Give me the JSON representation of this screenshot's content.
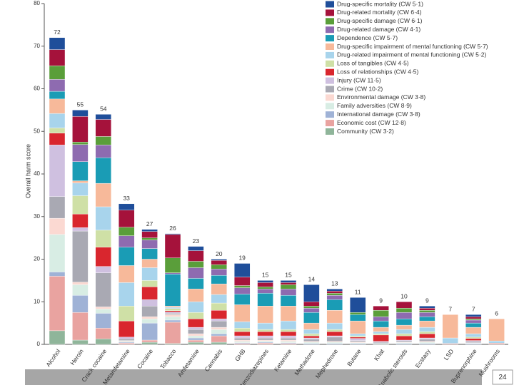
{
  "chart_data": {
    "type": "stacked_bar",
    "y_label": "Overall harm score",
    "ylim": [
      0,
      80
    ],
    "yticks": [
      0,
      10,
      20,
      30,
      40,
      50,
      60,
      70,
      80
    ],
    "categories": [
      "Alcohol",
      "Heroin",
      "Crack cocaine",
      "Metamfetamine",
      "Cocaine",
      "Tobacco",
      "Amfetamine",
      "Cannabis",
      "GHB",
      "Benzodiazepines",
      "Ketamine",
      "Methadone",
      "Mephedrone",
      "Butane",
      "Khat",
      "Anabolic steroids",
      "Ecstasy",
      "LSD",
      "Buprenorphine",
      "Mushrooms"
    ],
    "totals": [
      72,
      55,
      54,
      33,
      27,
      26,
      23,
      20,
      19,
      15,
      15,
      14,
      13,
      11,
      9,
      10,
      9,
      7,
      7,
      6
    ],
    "series": [
      {
        "name": "Drug-specific mortality (CW 5·1)",
        "color": "#1f4e9a",
        "values": [
          2.8,
          1.5,
          1.2,
          1.5,
          0.5,
          0.2,
          1.0,
          0.3,
          3.2,
          0.5,
          0.5,
          4.0,
          0.5,
          3.5,
          0.0,
          0.0,
          0.5,
          0,
          0.5,
          0
        ]
      },
      {
        "name": "Drug-related mortality (CW 6·4)",
        "color": "#a5123b",
        "values": [
          3.8,
          6.0,
          4.0,
          4.0,
          1.5,
          5.5,
          2.5,
          1.0,
          2.0,
          1.0,
          0.5,
          1.0,
          0.5,
          0.0,
          1.0,
          1.5,
          0.5,
          0,
          0.5,
          0
        ]
      },
      {
        "name": "Drug-specific damage (CW 6·1)",
        "color": "#5a9e3a",
        "values": [
          3.2,
          0.6,
          2.0,
          2.0,
          0.5,
          3.5,
          1.5,
          1.0,
          0.5,
          0.5,
          1.0,
          0.5,
          0.5,
          0.5,
          1.5,
          1.0,
          0.5,
          0,
          0.3,
          0
        ]
      },
      {
        "name": "Drug-related damage (CW 4·1)",
        "color": "#8e6bb0",
        "values": [
          2.8,
          4.0,
          3.0,
          2.7,
          2.0,
          0.3,
          2.5,
          1.5,
          1.5,
          1.0,
          1.5,
          1.0,
          1.0,
          0.0,
          1.0,
          1.5,
          1.0,
          0,
          0.7,
          0
        ]
      },
      {
        "name": "Dependence (CW 5·7)",
        "color": "#1a9cb5",
        "values": [
          1.8,
          4.5,
          6.0,
          4.3,
          2.5,
          7.5,
          2.5,
          2.0,
          2.5,
          3.0,
          2.5,
          2.5,
          2.5,
          1.5,
          1.5,
          1.5,
          1.0,
          0,
          1.0,
          0
        ]
      },
      {
        "name": "Drug-specific impairment of mental functioning (CW 5·7)",
        "color": "#f7b99a",
        "values": [
          3.4,
          0.5,
          5.5,
          4.0,
          2.0,
          0.3,
          3.0,
          2.5,
          4.0,
          4.0,
          3.5,
          1.5,
          3.0,
          3.0,
          1.0,
          1.0,
          1.5,
          5.5,
          1.5,
          5.2
        ]
      },
      {
        "name": "Drug-related impairment of mental functioning (CW 5·2)",
        "color": "#a8d4ec",
        "values": [
          3.4,
          3.0,
          5.5,
          5.5,
          3.0,
          0.3,
          2.5,
          2.0,
          1.5,
          1.5,
          2.0,
          1.0,
          1.5,
          0.5,
          0.5,
          1.0,
          1.0,
          1.3,
          0.8,
          0.5
        ]
      },
      {
        "name": "Loss of tangibles (CW 4·5)",
        "color": "#cfe0a6",
        "values": [
          1.2,
          4.3,
          4.0,
          3.5,
          1.5,
          0.5,
          1.5,
          1.7,
          0.8,
          0.5,
          0.5,
          0.5,
          0.5,
          0.3,
          0.3,
          0.5,
          0.5,
          0,
          0.3,
          0
        ]
      },
      {
        "name": "Loss of relationships (CW 4·5)",
        "color": "#d9262e",
        "values": [
          2.8,
          3.2,
          4.5,
          3.8,
          3.0,
          0.3,
          2.0,
          2.0,
          1.0,
          1.0,
          1.0,
          0.5,
          1.0,
          0.3,
          1.5,
          1.0,
          1.0,
          0,
          0.5,
          0
        ]
      },
      {
        "name": "Injury (CW 11·5)",
        "color": "#cfc0e0",
        "values": [
          12.1,
          0.8,
          1.5,
          0.4,
          1.5,
          0.3,
          0.5,
          0.5,
          0.5,
          0.5,
          0.5,
          0.3,
          0.3,
          0.5,
          0.2,
          0.2,
          0.3,
          0,
          0.2,
          0
        ]
      },
      {
        "name": "Crime (CW 10·2)",
        "color": "#a9a9b3",
        "values": [
          5.1,
          12.0,
          8.0,
          0.4,
          2.5,
          0.3,
          1.0,
          1.5,
          0.5,
          0.5,
          0.5,
          0.5,
          1.0,
          0.3,
          0.3,
          0.3,
          0.5,
          0,
          0.3,
          0
        ]
      },
      {
        "name": "Environmental damage (CW 3·8)",
        "color": "#fbd9d2",
        "values": [
          3.8,
          0.6,
          0.5,
          0.2,
          0.5,
          0.5,
          0.5,
          0.5,
          0.3,
          0.2,
          0.3,
          0.2,
          0.2,
          0.2,
          0.0,
          0.1,
          0.2,
          0,
          0.1,
          0
        ]
      },
      {
        "name": "Family adversities (CW 8·9)",
        "color": "#d8ede4",
        "values": [
          8.8,
          2.5,
          1.0,
          0.2,
          1.0,
          0.8,
          0.5,
          1.0,
          0.3,
          0.3,
          0.3,
          0.3,
          0.3,
          0.2,
          0.2,
          0.2,
          0.3,
          0,
          0.1,
          0
        ]
      },
      {
        "name": "International damage (CW 3·8)",
        "color": "#9fb2d6",
        "values": [
          1.0,
          4.0,
          3.5,
          0.2,
          4.0,
          0.5,
          0.5,
          0.5,
          0.2,
          0.2,
          0.2,
          0.2,
          0.2,
          0.2,
          0.0,
          0.2,
          0.2,
          0,
          0.2,
          0
        ]
      },
      {
        "name": "Economic cost (CW 12·8)",
        "color": "#e9a3a0",
        "values": [
          12.8,
          6.5,
          2.5,
          0.3,
          0.5,
          5.0,
          0.5,
          1.5,
          0.2,
          0.3,
          0.2,
          0.0,
          0.0,
          0.0,
          0.0,
          0.0,
          0.0,
          0.2,
          0.0,
          0.3
        ]
      },
      {
        "name": "Community (CW 3·2)",
        "color": "#8fb59a",
        "values": [
          3.2,
          1.0,
          1.3,
          0.0,
          0.5,
          0.2,
          0.5,
          0.5,
          0.0,
          0.0,
          0.0,
          0.0,
          0.0,
          0.0,
          0.0,
          0.0,
          0.0,
          0,
          0.0,
          0
        ]
      }
    ]
  },
  "page_number": "24"
}
